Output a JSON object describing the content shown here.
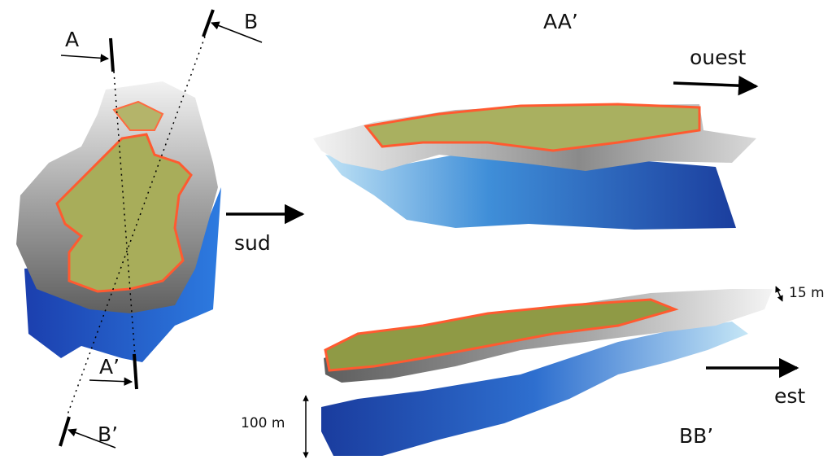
{
  "sections": {
    "left": {
      "a": "A",
      "b": "B",
      "a_prime": "A’",
      "b_prime": "B’"
    },
    "aa": {
      "title": "AA’",
      "direction": "ouest"
    },
    "bb": {
      "title": "BB’",
      "direction": "est"
    },
    "middle": {
      "direction": "sud"
    },
    "scale": {
      "horizontal_cut": "15 m",
      "vertical": "100 m"
    }
  }
}
